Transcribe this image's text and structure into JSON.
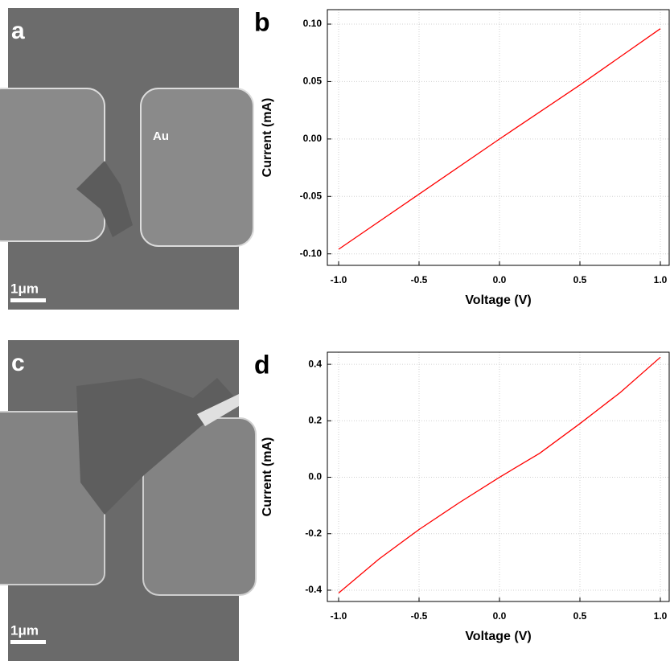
{
  "images": [
    {
      "panel_label": "a",
      "annotation": "Au",
      "scale_bar": "1μm"
    },
    {
      "panel_label": "c",
      "scale_bar": "1μm"
    }
  ],
  "chart_data": [
    {
      "type": "line",
      "panel_label": "b",
      "x_label": "Voltage (V)",
      "y_label": "Current (mA)",
      "x": [
        -1.0,
        -0.5,
        0.0,
        0.5,
        1.0
      ],
      "series": [
        {
          "color": "#ff0000",
          "values": [
            -0.096,
            -0.048,
            0.0,
            0.047,
            0.096
          ]
        }
      ],
      "xlim": [
        -1.07,
        1.055
      ],
      "ylim": [
        -0.11,
        0.1126
      ],
      "xticks": [
        {
          "value": -1.0,
          "label": "-1.0"
        },
        -0.5,
        {
          "value": 0.0,
          "label": "0.0"
        },
        0.5,
        {
          "value": 1.0,
          "label": "1.0"
        }
      ],
      "yticks": [
        {
          "value": -0.1,
          "label": "-0.10"
        },
        -0.05,
        {
          "value": 0.0,
          "label": "0.00"
        },
        0.05,
        {
          "value": 0.1,
          "label": "0.10"
        }
      ],
      "grid": true
    },
    {
      "type": "line",
      "panel_label": "d",
      "x_label": "Voltage (V)",
      "y_label": "Current (mA)",
      "x": [
        -1.0,
        -0.75,
        -0.5,
        -0.25,
        0.0,
        0.25,
        0.5,
        0.75,
        1.0
      ],
      "series": [
        {
          "color": "#ff0000",
          "values": [
            -0.41,
            -0.29,
            -0.185,
            -0.09,
            0.0,
            0.085,
            0.19,
            0.3,
            0.425
          ]
        }
      ],
      "xlim": [
        -1.07,
        1.055
      ],
      "ylim": [
        -0.44,
        0.443
      ],
      "xticks": [
        {
          "value": -1.0,
          "label": "-1.0"
        },
        -0.5,
        {
          "value": 0.0,
          "label": "0.0"
        },
        0.5,
        {
          "value": 1.0,
          "label": "1.0"
        }
      ],
      "yticks": [
        -0.4,
        -0.2,
        {
          "value": 0.0,
          "label": "0.0"
        },
        0.2,
        0.4
      ],
      "grid": true
    }
  ]
}
